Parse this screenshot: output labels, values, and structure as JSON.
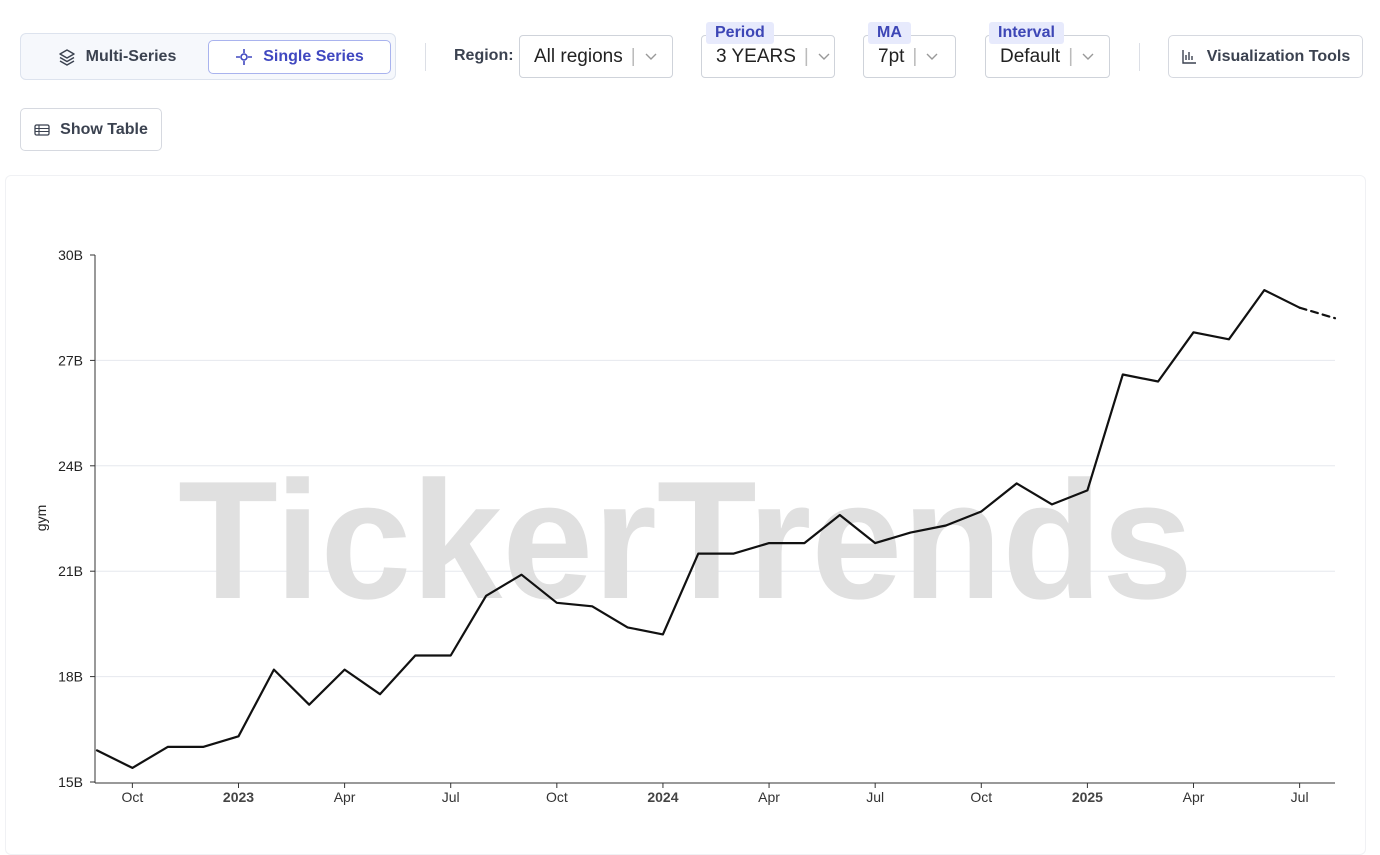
{
  "toolbar": {
    "multi_series": "Multi-Series",
    "single_series": "Single Series",
    "region_label": "Region:",
    "region_value": "All regions",
    "period_label": "Period",
    "period_value": "3 YEARS",
    "ma_label": "MA",
    "ma_value": "7pt",
    "interval_label": "Interval",
    "interval_value": "Default",
    "visualization_tools": "Visualization Tools",
    "show_table": "Show Table"
  },
  "chart_data": {
    "type": "line",
    "watermark": "TickerTrends",
    "y_label": "gym",
    "x": [
      "2022-09",
      "2022-10",
      "2022-11",
      "2022-12",
      "2023-01",
      "2023-02",
      "2023-03",
      "2023-04",
      "2023-05",
      "2023-06",
      "2023-07",
      "2023-08",
      "2023-09",
      "2023-10",
      "2023-11",
      "2023-12",
      "2024-01",
      "2024-02",
      "2024-03",
      "2024-04",
      "2024-05",
      "2024-06",
      "2024-07",
      "2024-08",
      "2024-09",
      "2024-10",
      "2024-11",
      "2024-12",
      "2025-01",
      "2025-02",
      "2025-03",
      "2025-04",
      "2025-05",
      "2025-06",
      "2025-07",
      "2025-08"
    ],
    "series": [
      {
        "color": "#111111",
        "line_style": "solid",
        "values": [
          15.9,
          15.4,
          16.0,
          16.0,
          16.3,
          18.2,
          17.2,
          18.2,
          17.5,
          18.6,
          18.6,
          20.3,
          20.9,
          20.1,
          20.0,
          19.4,
          19.2,
          21.5,
          21.5,
          21.8,
          21.8,
          22.6,
          21.8,
          22.1,
          22.3,
          22.7,
          23.5,
          22.9,
          23.3,
          26.6,
          26.4,
          27.8,
          27.6,
          29.0,
          28.5,
          null
        ]
      },
      {
        "color": "#111111",
        "line_style": "dashed",
        "values": [
          null,
          null,
          null,
          null,
          null,
          null,
          null,
          null,
          null,
          null,
          null,
          null,
          null,
          null,
          null,
          null,
          null,
          null,
          null,
          null,
          null,
          null,
          null,
          null,
          null,
          null,
          null,
          null,
          null,
          null,
          null,
          null,
          null,
          null,
          28.5,
          28.2
        ]
      }
    ],
    "xlim": [
      "2022-09",
      "2025-08"
    ],
    "xticks": [
      {
        "value": "2022-10",
        "label": "Oct"
      },
      {
        "value": "2023-01",
        "label": "2023"
      },
      {
        "value": "2023-04",
        "label": "Apr"
      },
      {
        "value": "2023-07",
        "label": "Jul"
      },
      {
        "value": "2023-10",
        "label": "Oct"
      },
      {
        "value": "2024-01",
        "label": "2024"
      },
      {
        "value": "2024-04",
        "label": "Apr"
      },
      {
        "value": "2024-07",
        "label": "Jul"
      },
      {
        "value": "2024-10",
        "label": "Oct"
      },
      {
        "value": "2025-01",
        "label": "2025"
      },
      {
        "value": "2025-04",
        "label": "Apr"
      },
      {
        "value": "2025-07",
        "label": "Jul"
      }
    ],
    "ylim": [
      15,
      30
    ],
    "yticks": [
      {
        "value": 15,
        "label": "15B"
      },
      {
        "value": 18,
        "label": "18B"
      },
      {
        "value": 21,
        "label": "21B"
      },
      {
        "value": 24,
        "label": "24B"
      },
      {
        "value": 27,
        "label": "27B"
      },
      {
        "value": 30,
        "label": "30B"
      }
    ],
    "grid": true
  }
}
